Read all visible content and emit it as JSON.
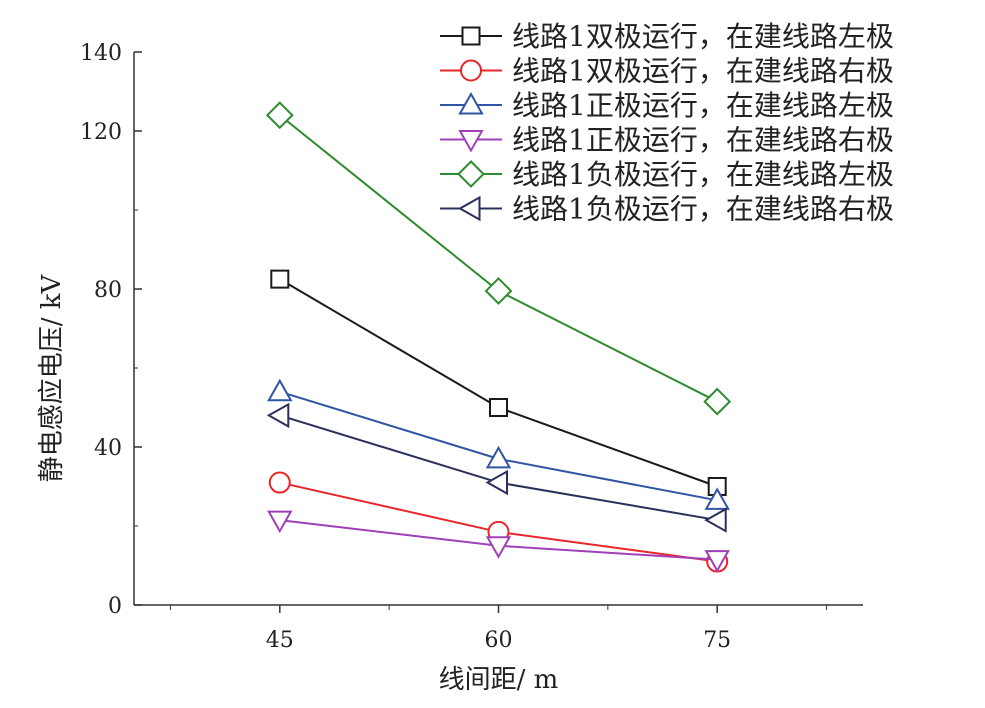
{
  "chart_data": {
    "type": "line",
    "xlabel": "线间距/ m",
    "ylabel": "静电感应电压/ kV",
    "x": [
      45,
      60,
      75
    ],
    "xlim": [
      35,
      85
    ],
    "ylim": [
      0,
      140
    ],
    "x_ticks": [
      "45",
      "60",
      "75"
    ],
    "y_ticks": [
      "0",
      "40",
      "80",
      "120",
      "140"
    ],
    "legend_position": "top-right",
    "grid": false,
    "series": [
      {
        "name": "线路1双极运行，在建线路左极",
        "values": [
          82.5,
          50,
          30
        ],
        "color": "#1a1a1a",
        "marker": "square"
      },
      {
        "name": "线路1双极运行，在建线路右极",
        "values": [
          31,
          18.5,
          11
        ],
        "color": "#e8262a",
        "marker": "circle"
      },
      {
        "name": "线路1正极运行，在建线路左极",
        "values": [
          54,
          37,
          26.5
        ],
        "color": "#2f55a4",
        "marker": "triangle-up"
      },
      {
        "name": "线路1正极运行，在建线路右极",
        "values": [
          21.5,
          15,
          11.5
        ],
        "color": "#a040b8",
        "marker": "triangle-down"
      },
      {
        "name": "线路1负极运行，在建线路左极",
        "values": [
          124,
          79.5,
          51.5
        ],
        "color": "#2e8b2e",
        "marker": "diamond"
      },
      {
        "name": "线路1负极运行，在建线路右极",
        "values": [
          48,
          31,
          21.5
        ],
        "color": "#2b2f5c",
        "marker": "triangle-left"
      }
    ]
  }
}
